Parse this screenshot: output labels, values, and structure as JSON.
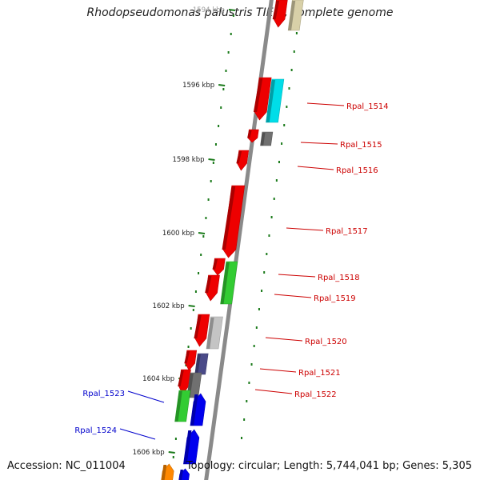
{
  "map": {
    "title": "Rhodopseudomonas palustris TIE-1, complete genome",
    "accession": "Accession: NC_011004",
    "topology": "Topology: circular; Length: 5,744,041 bp; Genes: 5,305"
  },
  "kbp_ticks": [
    "1594 kbp",
    "1596 kbp",
    "1598 kbp",
    "1600 kbp",
    "1602 kbp",
    "1604 kbp",
    "1606 kbp"
  ],
  "gene_labels": {
    "right": [
      "Rpal_1514",
      "Rpal_1515",
      "Rpal_1516",
      "Rpal_1517",
      "Rpal_1518",
      "Rpal_1519",
      "Rpal_1520",
      "Rpal_1521",
      "Rpal_1522"
    ],
    "left": [
      "Rpal_1523",
      "Rpal_1524"
    ]
  },
  "colors": {
    "backbone": "#8a8a8a",
    "tick_green": "#1a7a1a",
    "label_red": "#cc0000",
    "label_blue": "#0000cc",
    "red": "#ee0000",
    "cyan": "#00dde8",
    "grey": "#707070",
    "green": "#33cc33",
    "light_grey": "#c4c4c4",
    "slate": "#4a4a88",
    "blue": "#0000ee",
    "orange": "#ff8800",
    "tan": "#d8d0a8"
  }
}
